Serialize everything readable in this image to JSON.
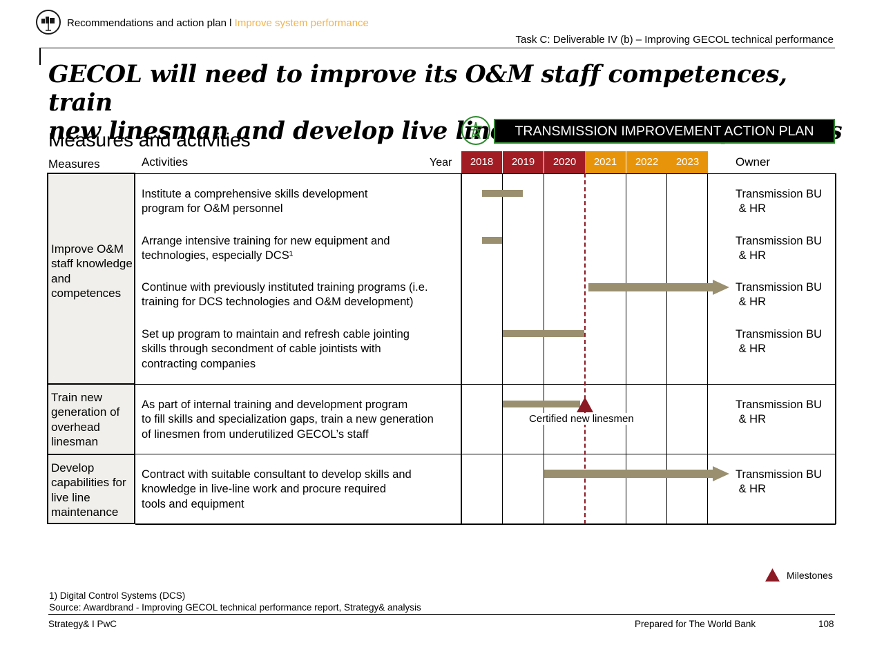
{
  "header": {
    "breadcrumb_main": "Recommendations and action plan l ",
    "breadcrumb_highlight": "Improve system performance",
    "task": "Task C: Deliverable IV (b) – Improving GECOL technical performance"
  },
  "title": {
    "line1": "GECOL will need to improve its O&M staff competences, train",
    "line2": "new linesman and develop live line maintenance capabilities"
  },
  "subtitle": "Measures and activities",
  "banner": "TRANSMISSION IMPROVEMENT ACTION PLAN",
  "table": {
    "col_measures": "Measures",
    "col_activities": "Activities",
    "col_year": "Year",
    "col_owner": "Owner",
    "years": [
      "2018",
      "2019",
      "2020",
      "2021",
      "2022",
      "2023"
    ],
    "year_colors": [
      "#A21C24",
      "#A21C24",
      "#A21C24",
      "#E8940A",
      "#E8940A",
      "#E8940A"
    ],
    "measures": [
      "Improve O&M staff knowledge and competences",
      "Train new generation of overhead linesman",
      "Develop capabilities for live line maintenance"
    ],
    "activities": [
      {
        "lines": [
          "Institute a comprehensive skills development",
          "program for O&M personnel"
        ],
        "owner": [
          "Transmission BU",
          " & HR"
        ]
      },
      {
        "lines": [
          "Arrange intensive training for new equipment and",
          "technologies, especially DCS¹"
        ],
        "owner": [
          "Transmission BU",
          " & HR"
        ]
      },
      {
        "lines": [
          "Continue with previously instituted training programs (i.e.",
          "training for DCS technologies and O&M development)"
        ],
        "owner": [
          "Transmission BU",
          " & HR"
        ]
      },
      {
        "lines": [
          "Set up program to maintain and refresh cable jointing",
          "skills through secondment of cable jointists with",
          "contracting companies"
        ],
        "owner": [
          "Transmission BU",
          " & HR"
        ]
      },
      {
        "lines": [
          "As part of internal training and development program",
          "to fill skills and specialization gaps, train a new generation",
          " of linesmen from underutilized GECOL’s staff"
        ],
        "owner": [
          "Transmission BU",
          " & HR"
        ]
      },
      {
        "lines": [
          "Contract with suitable consultant to develop skills and",
          "knowledge in live-line work and procure required",
          " tools and equipment"
        ],
        "owner": [
          "Transmission BU",
          " & HR"
        ]
      }
    ],
    "milestone_label": "Certified new linesmen"
  },
  "legend": {
    "milestones": "Milestones",
    "milestone_color": "#8B1A24"
  },
  "footnote": "1) Digital Control Systems (DCS)",
  "source": "Source: Awardbrand - Improving GECOL technical performance report, Strategy& analysis",
  "footer": {
    "left": "Strategy& I PwC",
    "center": "Prepared for The World Bank",
    "page": "108"
  },
  "colors": {
    "bar": "#9A8F6E",
    "milestone_line": "#8B1A24",
    "banner_border": "#2E8B2E",
    "highlight": "#F2B34A"
  }
}
